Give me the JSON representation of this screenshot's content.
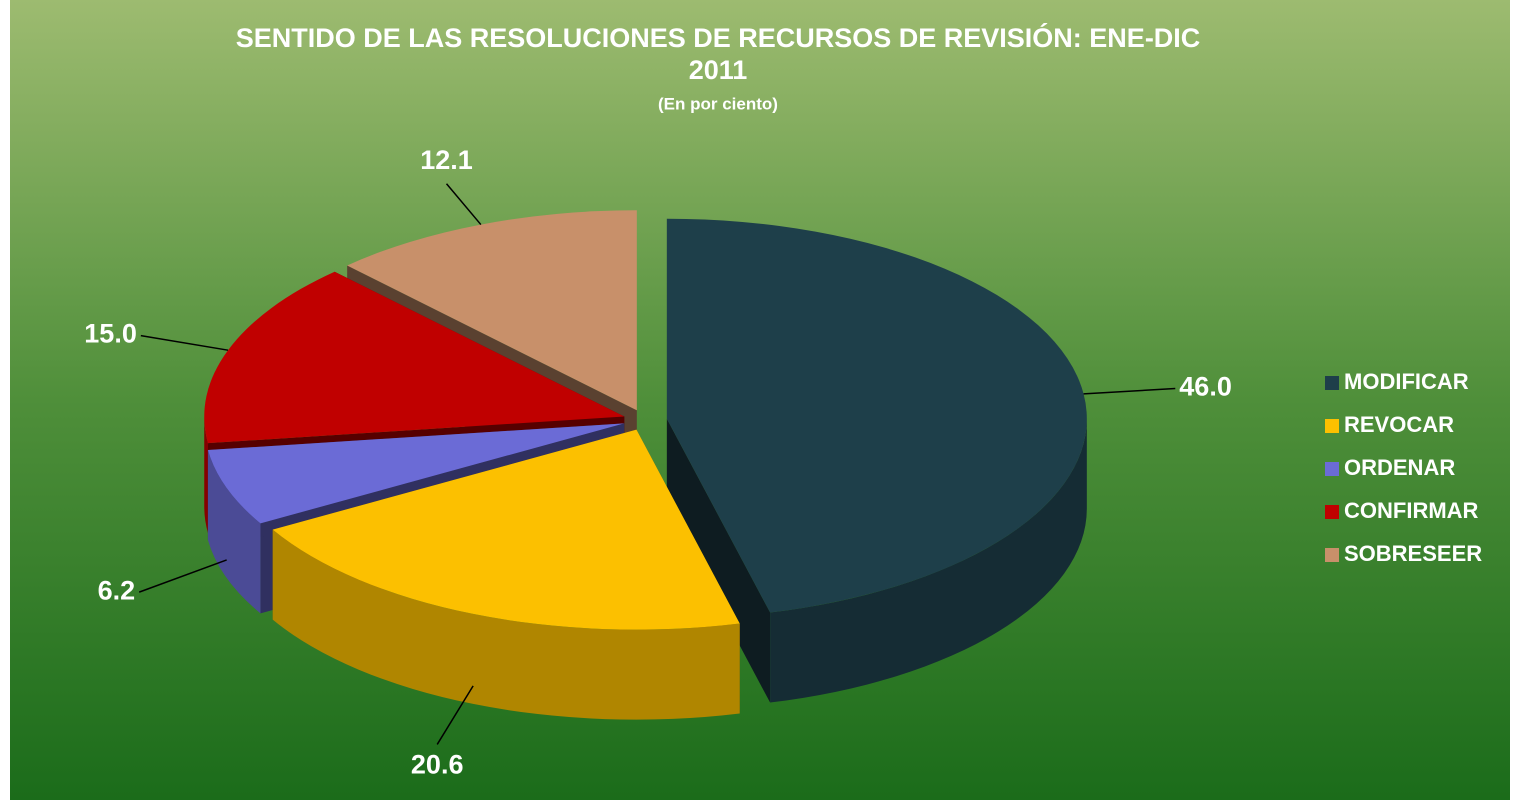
{
  "chart_data": {
    "type": "pie",
    "title": "SENTIDO DE LAS RESOLUCIONES DE RECURSOS DE REVISIÓN: ENE-DIC 2011",
    "subtitle": "(En por ciento)",
    "categories": [
      "MODIFICAR",
      "REVOCAR",
      "ORDENAR",
      "CONFIRMAR",
      "SOBRESEER"
    ],
    "values": [
      46.0,
      20.6,
      6.2,
      15.0,
      12.1
    ],
    "value_labels": [
      "46.0",
      "20.6",
      "6.2",
      "15.0",
      "12.1"
    ],
    "colors": [
      "#1e3f4a",
      "#fcc000",
      "#6b6bd6",
      "#c00000",
      "#c8906a"
    ],
    "legend": "right"
  }
}
